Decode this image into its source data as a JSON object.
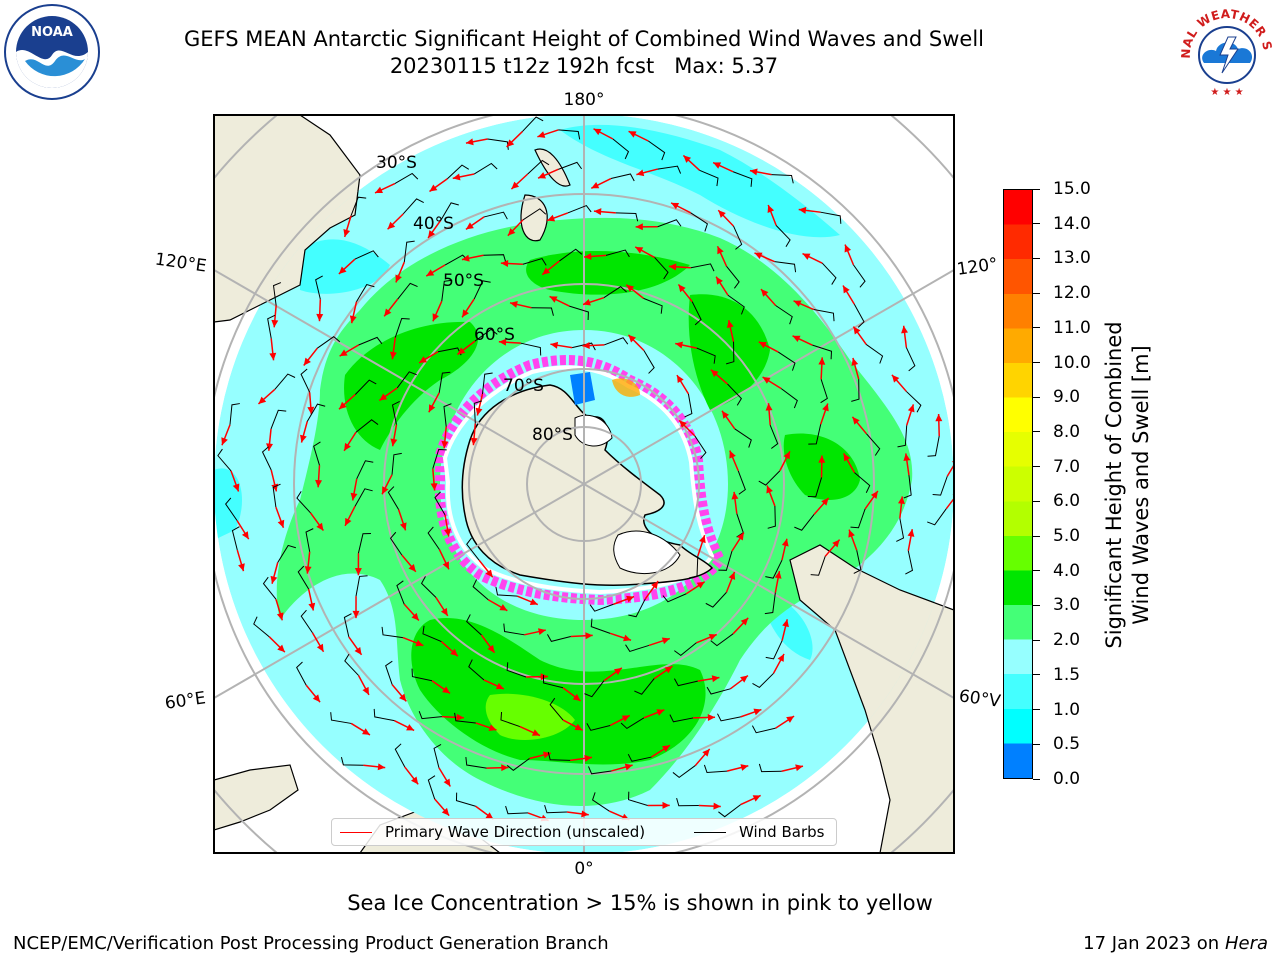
{
  "title": {
    "line1": "GEFS MEAN Antarctic Significant Height of Combined Wind Waves and Swell",
    "line2": "20230115 t12z 192h fcst   Max: 5.37"
  },
  "map": {
    "projection": "south-polar-stereographic",
    "lon_labels": [
      "180°",
      "120°E",
      "120°",
      "60°E",
      "60°V",
      "0°"
    ],
    "lat_labels": [
      "30°S",
      "40°S",
      "50°S",
      "60°S",
      "70°S",
      "80°S"
    ],
    "land_color": "#eeecdb",
    "ocean_color": "#96ffff",
    "grid_color": "#b3b3b3"
  },
  "colorbar": {
    "label_line1": "Significant Height of Combined",
    "label_line2": "Wind Waves and Swell [m]",
    "ticks": [
      "15.0",
      "14.0",
      "13.0",
      "12.0",
      "11.0",
      "10.0",
      "9.0",
      "8.0",
      "7.0",
      "6.0",
      "5.0",
      "4.0",
      "3.0",
      "2.0",
      "1.5",
      "1.0",
      "0.5",
      "0.0"
    ],
    "colors": [
      "#ff0000",
      "#ff2a00",
      "#ff5500",
      "#ff8000",
      "#ffaa00",
      "#ffd400",
      "#ffff00",
      "#e6ff00",
      "#ccff00",
      "#b3ff00",
      "#66ff00",
      "#00e600",
      "#44ff77",
      "#96ffff",
      "#44ffff",
      "#00ffff",
      "#0080ff",
      "#0000ff"
    ]
  },
  "legend": {
    "wave_label": "Primary Wave Direction (unscaled)",
    "wave_color": "#ff0000",
    "wind_label": "Wind Barbs",
    "wind_color": "#000000"
  },
  "sea_ice_note": "Sea Ice Concentration > 15% is shown in pink to yellow",
  "footer": {
    "left": "NCEP/EMC/Verification Post Processing Product Generation Branch",
    "date": "17 Jan 2023 on",
    "host": "Hera"
  },
  "logos": {
    "noaa_text": "NOAA",
    "nws_text": "NATIONAL WEATHER SERVICE"
  }
}
